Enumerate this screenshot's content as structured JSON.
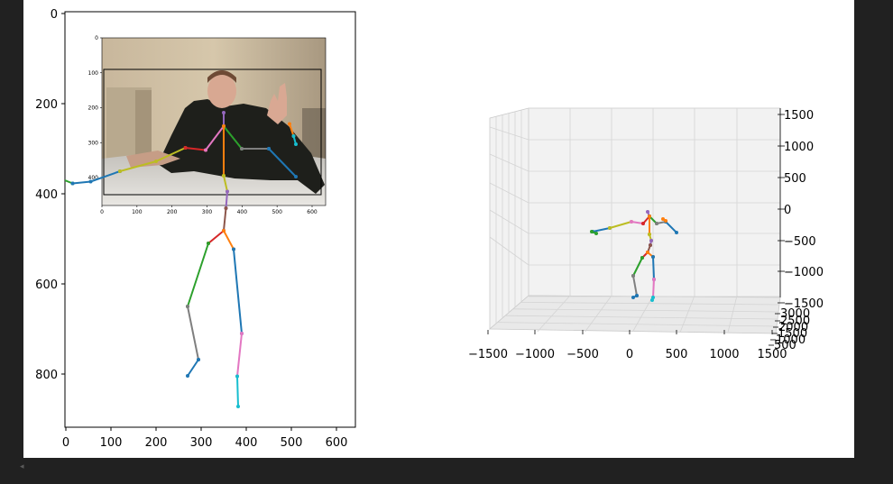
{
  "chart_data": [
    {
      "type": "scatter",
      "description_kind": "2d-skeleton",
      "xlim": [
        0,
        640
      ],
      "ylim": [
        920,
        0
      ],
      "xticks": [
        "0",
        "100",
        "200",
        "300",
        "400",
        "500",
        "600"
      ],
      "yticks": [
        "0",
        "200",
        "400",
        "600",
        "800"
      ],
      "xtick_values": [
        0,
        100,
        200,
        300,
        400,
        500,
        600
      ],
      "ytick_values": [
        0,
        200,
        400,
        600,
        800
      ],
      "segments": [
        {
          "color": "#2ca02c",
          "points": [
            [
              -70,
              352
            ],
            [
              -15,
              365
            ],
            [
              15,
              377
            ]
          ]
        },
        {
          "color": "#1f77b4",
          "points": [
            [
              15,
              377
            ],
            [
              55,
              373
            ],
            [
              120,
              350
            ]
          ]
        },
        {
          "color": "#bcbd22",
          "points": [
            [
              120,
              350
            ],
            [
              200,
              328
            ],
            [
              265,
              298
            ]
          ]
        },
        {
          "color": "#d62728",
          "points": [
            [
              265,
              298
            ],
            [
              310,
              303
            ]
          ]
        },
        {
          "color": "#e377c2",
          "points": [
            [
              310,
              303
            ],
            [
              350,
              250
            ]
          ]
        },
        {
          "color": "#9467bd",
          "points": [
            [
              350,
              250
            ],
            [
              350,
              220
            ]
          ]
        },
        {
          "color": "#2ca02c",
          "points": [
            [
              350,
              250
            ],
            [
              390,
              300
            ]
          ]
        },
        {
          "color": "#7f7f7f",
          "points": [
            [
              390,
              300
            ],
            [
              450,
              300
            ]
          ]
        },
        {
          "color": "#1f77b4",
          "points": [
            [
              450,
              300
            ],
            [
              510,
              362
            ]
          ]
        },
        {
          "color": "#ff7f0e",
          "points": [
            [
              350,
              250
            ],
            [
              350,
              360
            ]
          ]
        },
        {
          "color": "#bcbd22",
          "points": [
            [
              350,
              360
            ],
            [
              358,
              395
            ]
          ]
        },
        {
          "color": "#9467bd",
          "points": [
            [
              358,
              395
            ],
            [
              355,
              432
            ]
          ]
        },
        {
          "color": "#8c564b",
          "points": [
            [
              355,
              432
            ],
            [
              350,
              482
            ]
          ]
        },
        {
          "color": "#d62728",
          "points": [
            [
              350,
              482
            ],
            [
              316,
              510
            ]
          ]
        },
        {
          "color": "#2ca02c",
          "points": [
            [
              316,
              510
            ],
            [
              270,
              650
            ]
          ]
        },
        {
          "color": "#7f7f7f",
          "points": [
            [
              270,
              650
            ],
            [
              294,
              768
            ]
          ]
        },
        {
          "color": "#1f77b4",
          "points": [
            [
              294,
              768
            ],
            [
              270,
              804
            ]
          ]
        },
        {
          "color": "#ff7f0e",
          "points": [
            [
              350,
              482
            ],
            [
              372,
              523
            ]
          ]
        },
        {
          "color": "#1f77b4",
          "points": [
            [
              372,
              523
            ],
            [
              390,
              710
            ]
          ]
        },
        {
          "color": "#e377c2",
          "points": [
            [
              390,
              710
            ],
            [
              380,
              805
            ]
          ]
        },
        {
          "color": "#17becf",
          "points": [
            [
              380,
              805
            ],
            [
              382,
              872
            ]
          ]
        },
        {
          "color": "#ff7f0e",
          "points": [
            [
              496,
              245
            ],
            [
              505,
              272
            ]
          ]
        },
        {
          "color": "#17becf",
          "points": [
            [
              505,
              272
            ],
            [
              510,
              290
            ]
          ]
        }
      ],
      "inset_image": {
        "xticks": [
          "0",
          "100",
          "200",
          "300",
          "400",
          "500",
          "600"
        ],
        "yticks": [
          "0",
          "100",
          "200",
          "300",
          "400"
        ],
        "xtick_values": [
          0,
          100,
          200,
          300,
          400,
          500,
          600
        ],
        "ytick_values": [
          0,
          100,
          200,
          300,
          400
        ],
        "xlim": [
          0,
          640
        ],
        "ylim": [
          480,
          0
        ],
        "scene": "webcam photo of a person making a peace sign with pose overlay"
      }
    },
    {
      "type": "scatter",
      "description_kind": "3d-skeleton",
      "xticks": [
        "−1500",
        "−1000",
        "−500",
        "0",
        "500",
        "1000",
        "1500"
      ],
      "zticks": [
        "1500",
        "1000",
        "500",
        "0",
        "−500",
        "−1000",
        "−1500"
      ],
      "yticks": [
        "3000",
        "2500",
        "2000",
        "1500",
        "1000",
        "500"
      ],
      "grid": true,
      "pane_color": "#f0f0f0"
    }
  ],
  "ui": {
    "scroll_left_glyph": "◂"
  }
}
